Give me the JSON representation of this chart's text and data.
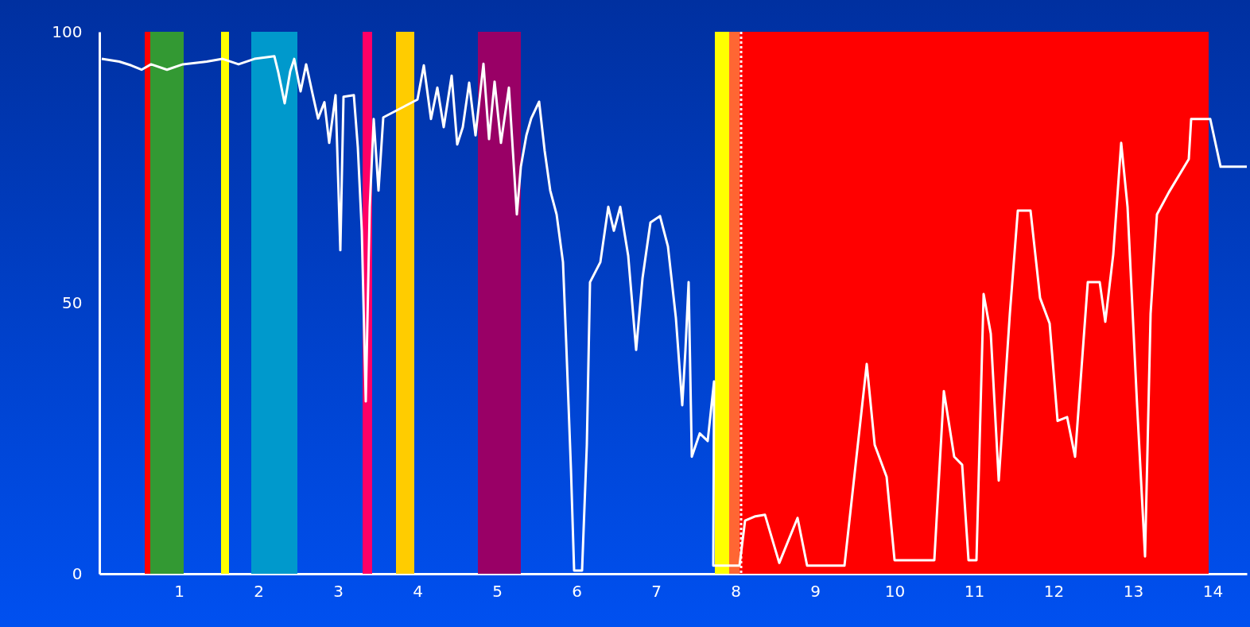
{
  "chart_data": {
    "type": "line",
    "x": [
      0.03,
      0.25,
      0.4,
      0.53,
      0.65,
      0.85,
      1.05,
      1.35,
      1.55,
      1.75,
      1.95,
      2.2,
      2.25,
      2.33,
      2.4,
      2.45,
      2.53,
      2.6,
      2.68,
      2.75,
      2.83,
      2.89,
      2.97,
      3.03,
      3.07,
      3.2,
      3.25,
      3.3,
      3.35,
      3.4,
      3.45,
      3.51,
      3.57,
      4.0,
      4.08,
      4.17,
      4.25,
      4.33,
      4.43,
      4.5,
      4.57,
      4.65,
      4.73,
      4.83,
      4.9,
      4.97,
      5.05,
      5.15,
      5.25,
      5.3,
      5.37,
      5.43,
      5.53,
      5.6,
      5.67,
      5.75,
      5.83,
      5.87,
      5.93,
      5.97,
      6.07,
      6.13,
      6.17,
      6.3,
      6.4,
      6.47,
      6.55,
      6.65,
      6.75,
      6.83,
      6.93,
      7.05,
      7.15,
      7.25,
      7.33,
      7.37,
      7.41,
      7.45,
      7.55,
      7.65,
      7.73,
      7.72,
      8.05,
      8.12,
      8.25,
      8.37,
      8.55,
      8.78,
      8.9,
      9.37,
      9.65,
      9.75,
      9.9,
      10.0,
      10.5,
      10.62,
      10.75,
      10.85,
      10.93,
      11.03,
      11.12,
      11.21,
      11.31,
      11.45,
      11.55,
      11.71,
      11.83,
      11.95,
      12.05,
      12.17,
      12.27,
      12.35,
      12.43,
      12.58,
      12.65,
      12.75,
      12.85,
      12.93,
      13.05,
      13.15,
      13.22,
      13.3,
      13.45,
      13.7,
      13.73,
      13.97,
      14.1,
      14.43
    ],
    "series": [
      {
        "color": "#ffffff",
        "values": [
          95,
          94.5,
          93.8,
          93,
          94,
          93,
          94,
          94.5,
          95,
          94,
          95,
          95.5,
          92.5,
          86.8,
          92.7,
          95,
          89,
          94,
          88.6,
          84,
          87,
          79.5,
          88.3,
          59.7,
          88,
          88.3,
          78.7,
          63.3,
          31.8,
          67.7,
          83.9,
          70.7,
          84.2,
          87.5,
          93.8,
          83.9,
          89.7,
          82.4,
          91.9,
          79.2,
          82.4,
          90.6,
          80.9,
          94.1,
          80.2,
          90.8,
          79.5,
          89.7,
          66.3,
          75.1,
          80.9,
          84,
          87.1,
          78,
          70.7,
          66.3,
          57.5,
          42.8,
          19.4,
          0.6,
          0.6,
          23.8,
          53.8,
          57.5,
          67.7,
          63.3,
          67.7,
          58.7,
          41.3,
          54.5,
          64.8,
          66,
          60.4,
          47.2,
          31.1,
          41.3,
          53.8,
          21.6,
          25.9,
          24.5,
          35.5,
          1.5,
          1.5,
          9.8,
          10.6,
          10.9,
          2,
          10.3,
          1.5,
          1.5,
          38.7,
          23.8,
          17.9,
          2.5,
          2.5,
          33.7,
          21.6,
          20.1,
          2.5,
          2.5,
          51.6,
          44.3,
          17.2,
          48,
          67,
          67,
          50.9,
          46.2,
          28.2,
          28.9,
          21.6,
          37.7,
          53.8,
          53.8,
          46.5,
          58.9,
          79.5,
          67.7,
          31.1,
          3.2,
          48,
          66.3,
          70.4,
          76.5,
          83.9,
          83.9,
          75.1,
          75.1
        ]
      }
    ],
    "xlim": [
      0,
      14.43
    ],
    "xticks": [
      1,
      2,
      3,
      4,
      5,
      6,
      7,
      8,
      9,
      10,
      11,
      12,
      13,
      14
    ],
    "ylim": [
      0,
      100
    ],
    "yticks": [
      0,
      50,
      100
    ],
    "line_style": "solid",
    "bands": [
      {
        "axis": "x",
        "from": 0.57,
        "to": 0.64,
        "color": "#ff0000"
      },
      {
        "axis": "x",
        "from": 0.64,
        "to": 1.06,
        "color": "#339933"
      },
      {
        "axis": "x",
        "from": 1.53,
        "to": 1.63,
        "color": "#ffff00"
      },
      {
        "axis": "x",
        "from": 1.91,
        "to": 2.49,
        "color": "#0099cc"
      },
      {
        "axis": "x",
        "from": 3.31,
        "to": 3.43,
        "color": "#ff0066"
      },
      {
        "axis": "x",
        "from": 3.73,
        "to": 3.96,
        "color": "#ffcc00"
      },
      {
        "axis": "x",
        "from": 4.76,
        "to": 5.3,
        "color": "#990066"
      },
      {
        "axis": "x",
        "from": 7.74,
        "to": 7.92,
        "color": "#ffff00"
      },
      {
        "axis": "x",
        "from": 7.92,
        "to": 8.05,
        "color": "#ff6633"
      },
      {
        "axis": "x",
        "from": 8.05,
        "to": 13.95,
        "color": "#ff0000"
      }
    ],
    "ref_lines": [
      {
        "axis": "x",
        "value": 8.07,
        "color": "#ffffff",
        "line_style": "dotted"
      }
    ]
  }
}
